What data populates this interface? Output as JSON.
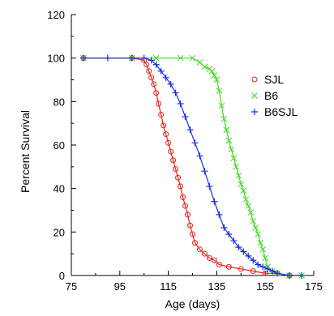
{
  "chart_data": {
    "type": "line",
    "xlabel": "Age (days)",
    "ylabel": "Percent Survival",
    "xlim": [
      75,
      175
    ],
    "ylim": [
      0,
      120
    ],
    "xticks": [
      75,
      95,
      115,
      135,
      155,
      175
    ],
    "yticks": [
      0,
      20,
      40,
      60,
      80,
      100,
      120
    ],
    "grid": false,
    "legend_position": "top-right",
    "series": [
      {
        "name": "SJL",
        "color": "#e8221d",
        "marker": "circle",
        "x": [
          80,
          100,
          105,
          106,
          107,
          108,
          109,
          110,
          111,
          112,
          113,
          114,
          115,
          116,
          117,
          118,
          119,
          120,
          121,
          122,
          123,
          124,
          125,
          126,
          128,
          130,
          132,
          134,
          136,
          140,
          145,
          150,
          155,
          160,
          165
        ],
        "y": [
          100,
          100,
          99,
          97,
          94,
          91,
          88,
          84,
          79,
          74,
          69,
          65,
          61,
          57,
          53,
          49,
          45,
          41,
          36,
          32,
          28,
          23,
          19,
          15,
          12,
          10,
          8,
          7,
          5,
          4,
          3,
          2,
          1,
          1,
          0
        ]
      },
      {
        "name": "B6",
        "color": "#3fd81d",
        "marker": "x",
        "x": [
          80,
          100,
          110,
          120,
          125,
          128,
          130,
          132,
          133,
          134,
          135,
          136,
          137,
          138,
          139,
          140,
          141,
          142,
          143,
          144,
          145,
          146,
          147,
          148,
          149,
          150,
          151,
          152,
          153,
          154,
          155,
          156,
          158,
          160,
          165,
          170
        ],
        "y": [
          100,
          100,
          100,
          100,
          100,
          98,
          96,
          95,
          94,
          92,
          90,
          85,
          78,
          72,
          67,
          62,
          58,
          54,
          50,
          46,
          42,
          39,
          35,
          32,
          29,
          25,
          22,
          19,
          15,
          12,
          8,
          4,
          2,
          1,
          0,
          0
        ]
      },
      {
        "name": "B6SJL",
        "color": "#1a2ee0",
        "marker": "plus",
        "x": [
          80,
          90,
          100,
          105,
          108,
          110,
          112,
          114,
          116,
          118,
          120,
          122,
          124,
          126,
          128,
          130,
          132,
          134,
          136,
          138,
          140,
          142,
          144,
          146,
          148,
          150,
          152,
          154,
          156,
          158,
          160,
          165,
          170
        ],
        "y": [
          100,
          100,
          100,
          100,
          99,
          97,
          94,
          91,
          88,
          84,
          79,
          73,
          67,
          61,
          55,
          48,
          41,
          34,
          28,
          22,
          19,
          16,
          13,
          11,
          9,
          7,
          5,
          4,
          3,
          2,
          1,
          0,
          0
        ]
      }
    ]
  }
}
